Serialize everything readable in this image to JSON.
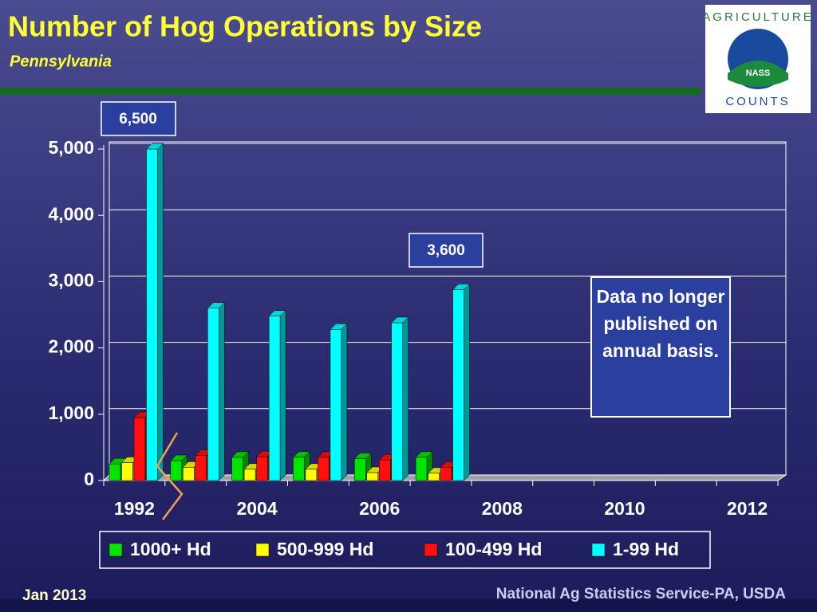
{
  "chart_data": {
    "type": "bar",
    "title": "Number of Hog Operations by Size",
    "subtitle": "Pennsylvania",
    "categories": [
      "1992",
      null,
      "2004",
      null,
      "2006",
      null,
      "2008",
      null,
      "2010",
      null,
      "2012"
    ],
    "series": [
      {
        "name": "1000+ Hd",
        "color": "#00e600",
        "values": [
          250,
          300,
          350,
          350,
          330,
          350,
          null,
          null,
          null,
          null,
          null
        ]
      },
      {
        "name": "500-999 Hd",
        "color": "#ffff00",
        "values": [
          270,
          200,
          170,
          170,
          120,
          110,
          null,
          null,
          null,
          null,
          null
        ]
      },
      {
        "name": "100-499 Hd",
        "color": "#ff1010",
        "values": [
          950,
          380,
          360,
          350,
          310,
          200,
          null,
          null,
          null,
          null,
          null
        ]
      },
      {
        "name": "1-99 Hd",
        "color": "#00ffff",
        "values": [
          5000,
          2600,
          2480,
          2280,
          2380,
          2880,
          null,
          null,
          null,
          null,
          null
        ]
      }
    ],
    "ylim": [
      0,
      5000
    ],
    "yticks": [
      0,
      {
        "value": 1000,
        "label": "1,000"
      },
      {
        "value": 2000,
        "label": "2,000"
      },
      {
        "value": 3000,
        "label": "3,000"
      },
      {
        "value": 4000,
        "label": "4,000"
      },
      {
        "value": 5000,
        "label": "5,000"
      }
    ],
    "annotations": [
      "6,500",
      "3,600",
      "Data no longer published on annual basis."
    ],
    "legend": "bottom"
  },
  "logo": {
    "top": "AGRICULTURE",
    "center": "NASS",
    "bottom": "COUNTS"
  },
  "footer": {
    "left": "Jan 2013",
    "right": "National Ag Statistics Service-PA, USDA"
  }
}
